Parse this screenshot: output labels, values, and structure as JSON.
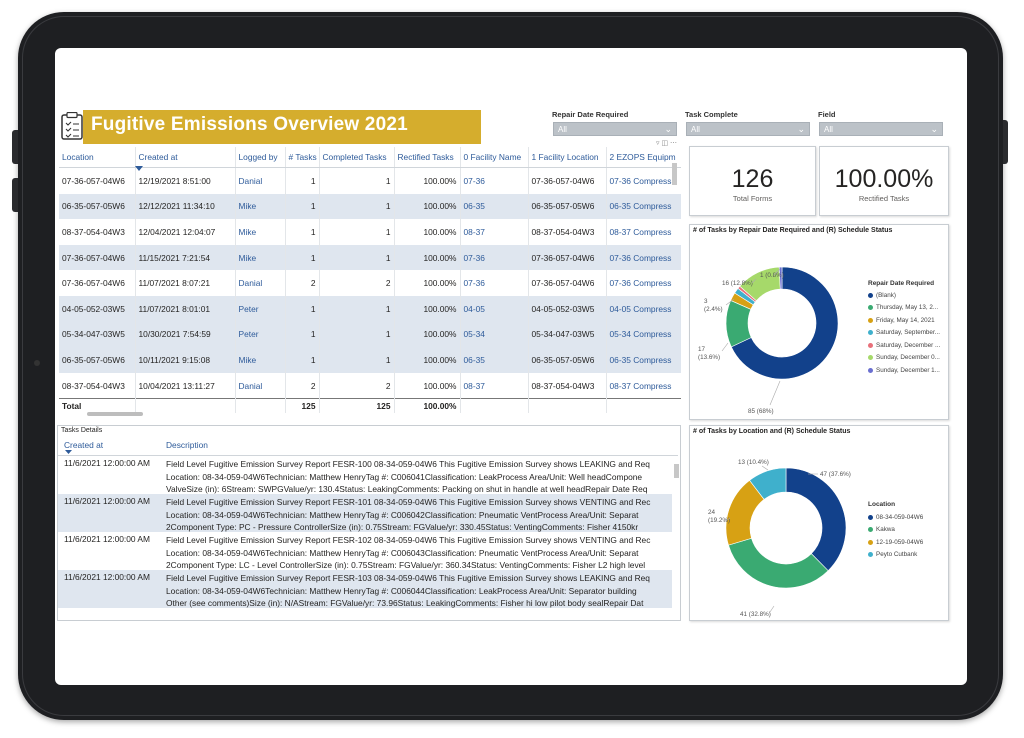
{
  "header": {
    "title": "Fugitive Emissions Overview 2021"
  },
  "filters": [
    {
      "label": "Repair Date Required",
      "value": "All"
    },
    {
      "label": "Task Complete",
      "value": "All"
    },
    {
      "label": "Field",
      "value": "All"
    }
  ],
  "table": {
    "columns": [
      "Location",
      "Created at",
      "Logged by",
      "# Tasks",
      "Completed Tasks",
      "Rectified Tasks",
      "0 Facility Name",
      "1 Facility Location",
      "2 EZOPS Equipm"
    ],
    "rows": [
      [
        "07-36-057-04W6",
        "12/19/2021 8:51:00",
        "Danial",
        "1",
        "1",
        "100.00%",
        "07-36",
        "07-36-057-04W6",
        "07-36 Compress"
      ],
      [
        "06-35-057-05W6",
        "12/12/2021 11:34:10",
        "Mike",
        "1",
        "1",
        "100.00%",
        "06-35",
        "06-35-057-05W6",
        "06-35 Compress"
      ],
      [
        "08-37-054-04W3",
        "12/04/2021 12:04:07",
        "Mike",
        "1",
        "1",
        "100.00%",
        "08-37",
        "08-37-054-04W3",
        "08-37 Compress"
      ],
      [
        "07-36-057-04W6",
        "11/15/2021 7:21:54",
        "Mike",
        "1",
        "1",
        "100.00%",
        "07-36",
        "07-36-057-04W6",
        "07-36 Compress"
      ],
      [
        "07-36-057-04W6",
        "11/07/2021 8:07:21",
        "Danial",
        "2",
        "2",
        "100.00%",
        "07-36",
        "07-36-057-04W6",
        "07-36 Compress"
      ],
      [
        "04-05-052-03W5",
        "11/07/2021 8:01:01",
        "Peter",
        "1",
        "1",
        "100.00%",
        "04-05",
        "04-05-052-03W5",
        "04-05 Compress"
      ],
      [
        "05-34-047-03W5",
        "10/30/2021 7:54:59",
        "Peter",
        "1",
        "1",
        "100.00%",
        "05-34",
        "05-34-047-03W5",
        "05-34 Compress"
      ],
      [
        "06-35-057-05W6",
        "10/11/2021 9:15:08",
        "Mike",
        "1",
        "1",
        "100.00%",
        "06-35",
        "06-35-057-05W6",
        "06-35 Compress"
      ],
      [
        "08-37-054-04W3",
        "10/04/2021 13:11:27",
        "Danial",
        "2",
        "2",
        "100.00%",
        "08-37",
        "08-37-054-04W3",
        "08-37 Compress"
      ]
    ],
    "total": {
      "label": "Total",
      "tasks": "125",
      "completed": "125",
      "rectified": "100.00%"
    }
  },
  "kpis": [
    {
      "value": "126",
      "label": "Total Forms"
    },
    {
      "value": "100.00%",
      "label": "Rectified Tasks"
    }
  ],
  "details": {
    "title": "Tasks Details",
    "columns": [
      "Created at",
      "Description"
    ],
    "rows": [
      {
        "date": "11/6/2021 12:00:00 AM",
        "lines": [
          "Field Level Fugitive Emission Survey Report FESR-100 08-34-059-04W6 This Fugitive Emission Survey shows LEAKING and Req",
          "Location: 08-34-059-04W6Technician: Matthew HenryTag #: C006041Classification: LeakProcess Area/Unit: Well headCompone",
          "ValveSize (in): 6Stream: SWPGValue/yr: 130.4Status: LeakingComments: Packing on shut in handle at well headRepair Date Req"
        ]
      },
      {
        "date": "11/6/2021 12:00:00 AM",
        "lines": [
          "Field Level Fugitive Emission Survey Report FESR-101 08-34-059-04W6 This Fugitive Emission Survey shows VENTING and Rec",
          "Location: 08-34-059-04W6Technician: Matthew HenryTag #: C006042Classification: Pneumatic VentProcess Area/Unit: Separat",
          "2Component Type: PC - Pressure ControllerSize (in): 0.75Stream: FGValue/yr: 330.45Status: VentingComments: Fisher 4150kr"
        ]
      },
      {
        "date": "11/6/2021 12:00:00 AM",
        "lines": [
          "Field Level Fugitive Emission Survey Report FESR-102 08-34-059-04W6 This Fugitive Emission Survey shows VENTING and Rec",
          "Location: 08-34-059-04W6Technician: Matthew HenryTag #: C006043Classification: Pneumatic VentProcess Area/Unit: Separat",
          "2Component Type: LC - Level ControllerSize (in): 0.75Stream: FGValue/yr: 360.34Status: VentingComments: Fisher L2 high level"
        ]
      },
      {
        "date": "11/6/2021 12:00:00 AM",
        "lines": [
          "Field Level Fugitive Emission Survey Report FESR-103 08-34-059-04W6 This Fugitive Emission Survey shows LEAKING and Req",
          "Location: 08-34-059-04W6Technician: Matthew HenryTag #: C006044Classification: LeakProcess Area/Unit: Separator building",
          "Other (see comments)Size (in): N/AStream: FGValue/yr: 73.96Status: LeakingComments: Fisher hi low pilot body sealRepair Dat"
        ]
      }
    ]
  },
  "chart_data": [
    {
      "type": "pie",
      "title": "# of Tasks by Repair Date Required and (R) Schedule Status",
      "legend_title": "Repair Date Required",
      "categories": [
        "(Blank)",
        "Thursday, May 13, 2...",
        "Friday, May 14, 2021",
        "Saturday, September...",
        "Saturday, December ...",
        "Sunday, December 0...",
        "Sunday, December 1..."
      ],
      "values": [
        85,
        17,
        3,
        2,
        1,
        16,
        1
      ],
      "data_labels": [
        "85 (68%)",
        "17 (13.6%)",
        "3 (2.4%)",
        "",
        "1 (0.8%)",
        "16 (12.8%)",
        ""
      ],
      "colors": [
        "#12418b",
        "#3aaa72",
        "#d7a114",
        "#3fb0cc",
        "#e8707a",
        "#a6d96a",
        "#6a6fd0"
      ],
      "legend": "right"
    },
    {
      "type": "pie",
      "title": "# of Tasks by Location and (R) Schedule Status",
      "legend_title": "Location",
      "categories": [
        "08-34-059-04W6",
        "Kakwa",
        "12-19-059-04W6",
        "Peyto Cutbank"
      ],
      "values": [
        47,
        41,
        24,
        13
      ],
      "data_labels": [
        "47 (37.6%)",
        "41 (32.8%)",
        "24 (19.2%)",
        "13 (10.4%)"
      ],
      "colors": [
        "#12418b",
        "#3aaa72",
        "#d7a114",
        "#3fb0cc"
      ],
      "legend": "right"
    }
  ]
}
